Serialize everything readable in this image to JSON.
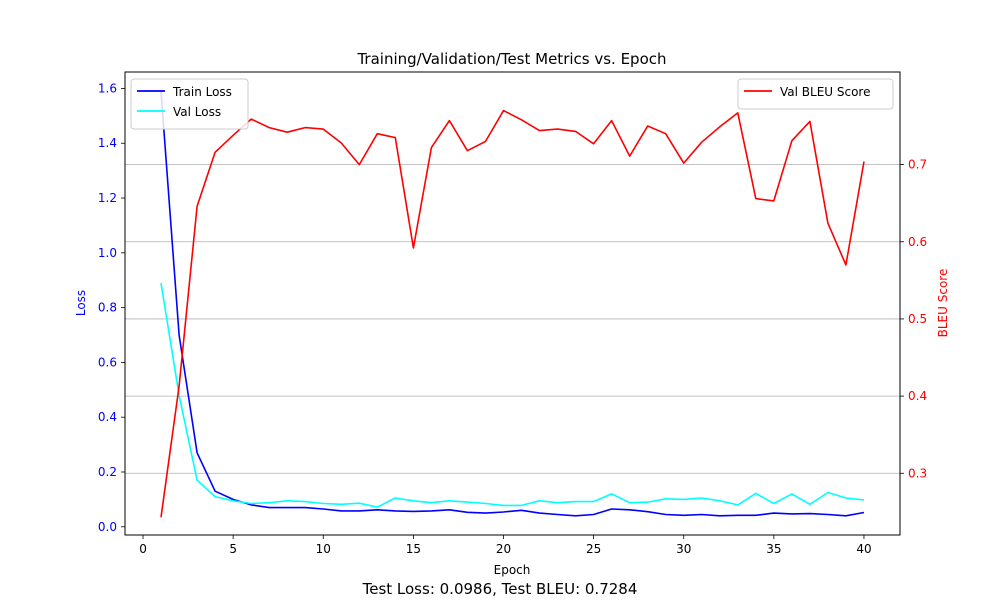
{
  "chart_data": {
    "type": "line",
    "title": "Training/Validation/Test Metrics vs. Epoch",
    "xlabel": "Epoch",
    "ylabel_left": "Loss",
    "ylabel_right": "BLEU Score",
    "footer": "Test Loss: 0.0986, Test BLEU: 0.7284",
    "xlim": [
      -1,
      42
    ],
    "ylim_left": [
      -0.03,
      1.66
    ],
    "ylim_right": [
      0.22,
      0.82
    ],
    "xticks": [
      0,
      5,
      10,
      15,
      20,
      25,
      30,
      35,
      40
    ],
    "yticks_left": [
      0.0,
      0.2,
      0.4,
      0.6,
      0.8,
      1.0,
      1.2,
      1.4,
      1.6
    ],
    "yticks_right": [
      0.3,
      0.4,
      0.5,
      0.6,
      0.7
    ],
    "grid": "horizontal, right axis only",
    "legend_left_placement": "upper left",
    "legend_right_placement": "upper right",
    "x": [
      1,
      2,
      3,
      4,
      5,
      6,
      7,
      8,
      9,
      10,
      11,
      12,
      13,
      14,
      15,
      16,
      17,
      18,
      19,
      20,
      21,
      22,
      23,
      24,
      25,
      26,
      27,
      28,
      29,
      30,
      31,
      32,
      33,
      34,
      35,
      36,
      37,
      38,
      39,
      40
    ],
    "series": [
      {
        "name": "Train Loss",
        "axis": "left",
        "color": "#0000ff",
        "values": [
          1.59,
          0.7,
          0.27,
          0.13,
          0.1,
          0.08,
          0.07,
          0.07,
          0.07,
          0.065,
          0.058,
          0.058,
          0.062,
          0.058,
          0.056,
          0.058,
          0.062,
          0.053,
          0.05,
          0.054,
          0.06,
          0.05,
          0.045,
          0.04,
          0.045,
          0.065,
          0.062,
          0.055,
          0.045,
          0.042,
          0.045,
          0.04,
          0.042,
          0.042,
          0.05,
          0.047,
          0.048,
          0.045,
          0.04,
          0.052
        ]
      },
      {
        "name": "Val Loss",
        "axis": "left",
        "color": "#00ffff",
        "values": [
          0.89,
          0.48,
          0.17,
          0.11,
          0.095,
          0.085,
          0.088,
          0.095,
          0.092,
          0.085,
          0.082,
          0.086,
          0.072,
          0.105,
          0.095,
          0.088,
          0.095,
          0.09,
          0.085,
          0.078,
          0.078,
          0.095,
          0.088,
          0.092,
          0.092,
          0.12,
          0.088,
          0.09,
          0.102,
          0.1,
          0.105,
          0.095,
          0.08,
          0.122,
          0.085,
          0.12,
          0.082,
          0.125,
          0.105,
          0.098
        ]
      },
      {
        "name": "Val BLEU Score",
        "axis": "right",
        "color": "#ff0000",
        "values": [
          0.243,
          0.413,
          0.646,
          0.716,
          0.738,
          0.759,
          0.748,
          0.742,
          0.748,
          0.746,
          0.728,
          0.7,
          0.74,
          0.735,
          0.592,
          0.722,
          0.757,
          0.718,
          0.73,
          0.77,
          0.758,
          0.744,
          0.746,
          0.743,
          0.727,
          0.757,
          0.711,
          0.75,
          0.74,
          0.702,
          0.729,
          0.749,
          0.767,
          0.656,
          0.653,
          0.731,
          0.756,
          0.624,
          0.57,
          0.704
        ]
      }
    ]
  }
}
